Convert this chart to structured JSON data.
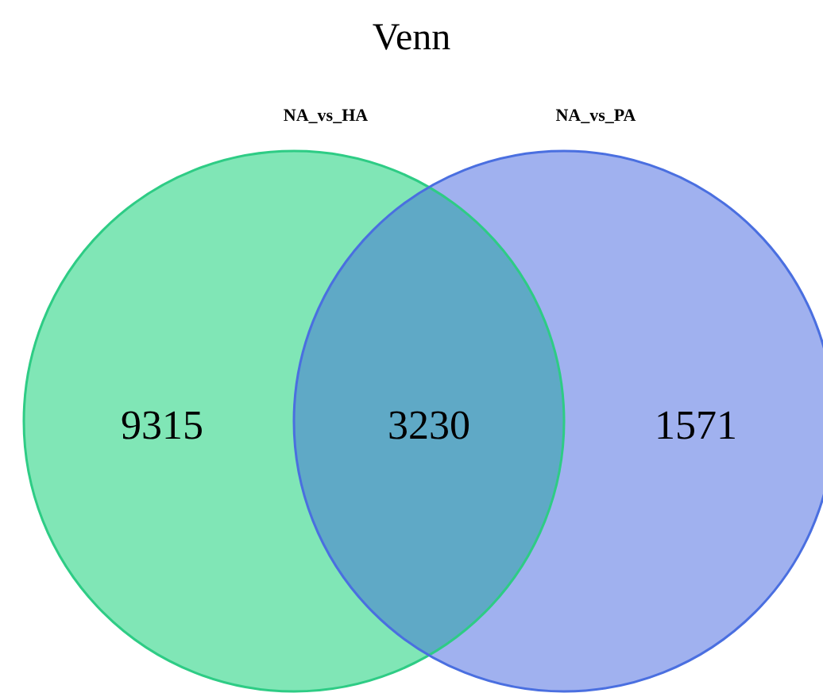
{
  "chart_data": {
    "type": "other",
    "title": "Venn",
    "categories": [
      null,
      null,
      null
    ],
    "values": [
      9315,
      3230,
      1571
    ],
    "colors": [
      "#80e6b6",
      "#5fa9c6",
      "#a0b1ef"
    ],
    "annotations": [
      "NA_vs_HA",
      "NA_vs_PA"
    ],
    "data_labels": true
  }
}
